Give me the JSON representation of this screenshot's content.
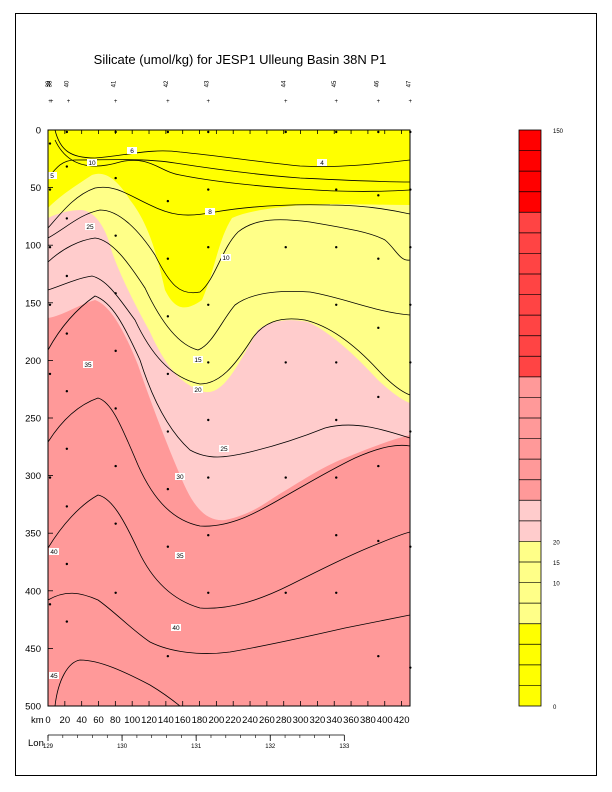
{
  "title": "Silicate (umol/kg) for JESP1 Ulleung Basin 38N P1",
  "colors": {
    "yellow": "#ffff00",
    "light_yellow": "#ffff88",
    "pale_pink": "#ffcccc",
    "salmon": "#ff9999",
    "red_mid": "#ff4444",
    "red": "#ff0000"
  },
  "chart_data": {
    "type": "contour",
    "title": "Silicate (umol/kg) for JESP1 Ulleung Basin 38N P1",
    "xlabel": "km",
    "x_secondary_label": "Lon",
    "ylabel": "",
    "xlim": [
      0,
      430
    ],
    "ylim": [
      500,
      0
    ],
    "x_ticks": [
      0,
      20,
      40,
      60,
      80,
      100,
      120,
      140,
      160,
      180,
      200,
      220,
      240,
      260,
      280,
      300,
      320,
      340,
      360,
      380,
      400,
      420
    ],
    "y_ticks": [
      0,
      50,
      100,
      150,
      200,
      250,
      300,
      350,
      400,
      450,
      500
    ],
    "lon_ticks": [
      {
        "label": "129",
        "km": 0
      },
      {
        "label": "130",
        "km": 88
      },
      {
        "label": "131",
        "km": 176
      },
      {
        "label": "132",
        "km": 264
      },
      {
        "label": "133",
        "km": 352
      }
    ],
    "stations": [
      {
        "label": "39",
        "km": 0
      },
      {
        "label": "38",
        "km": 2
      },
      {
        "label": "40",
        "km": 22
      },
      {
        "label": "41",
        "km": 78
      },
      {
        "label": "42",
        "km": 140
      },
      {
        "label": "43",
        "km": 188
      },
      {
        "label": "44",
        "km": 280
      },
      {
        "label": "45",
        "km": 340
      },
      {
        "label": "46",
        "km": 390
      },
      {
        "label": "47",
        "km": 428
      }
    ],
    "contour_labels": [
      "4",
      "5",
      "6",
      "8",
      "10",
      "10",
      "15",
      "20",
      "25",
      "25",
      "30",
      "35",
      "35",
      "40",
      "40",
      "45"
    ],
    "colorbar": {
      "min": 0,
      "max": 150,
      "tick_labels": [
        "150",
        "20",
        "15",
        "10",
        "0"
      ]
    }
  }
}
